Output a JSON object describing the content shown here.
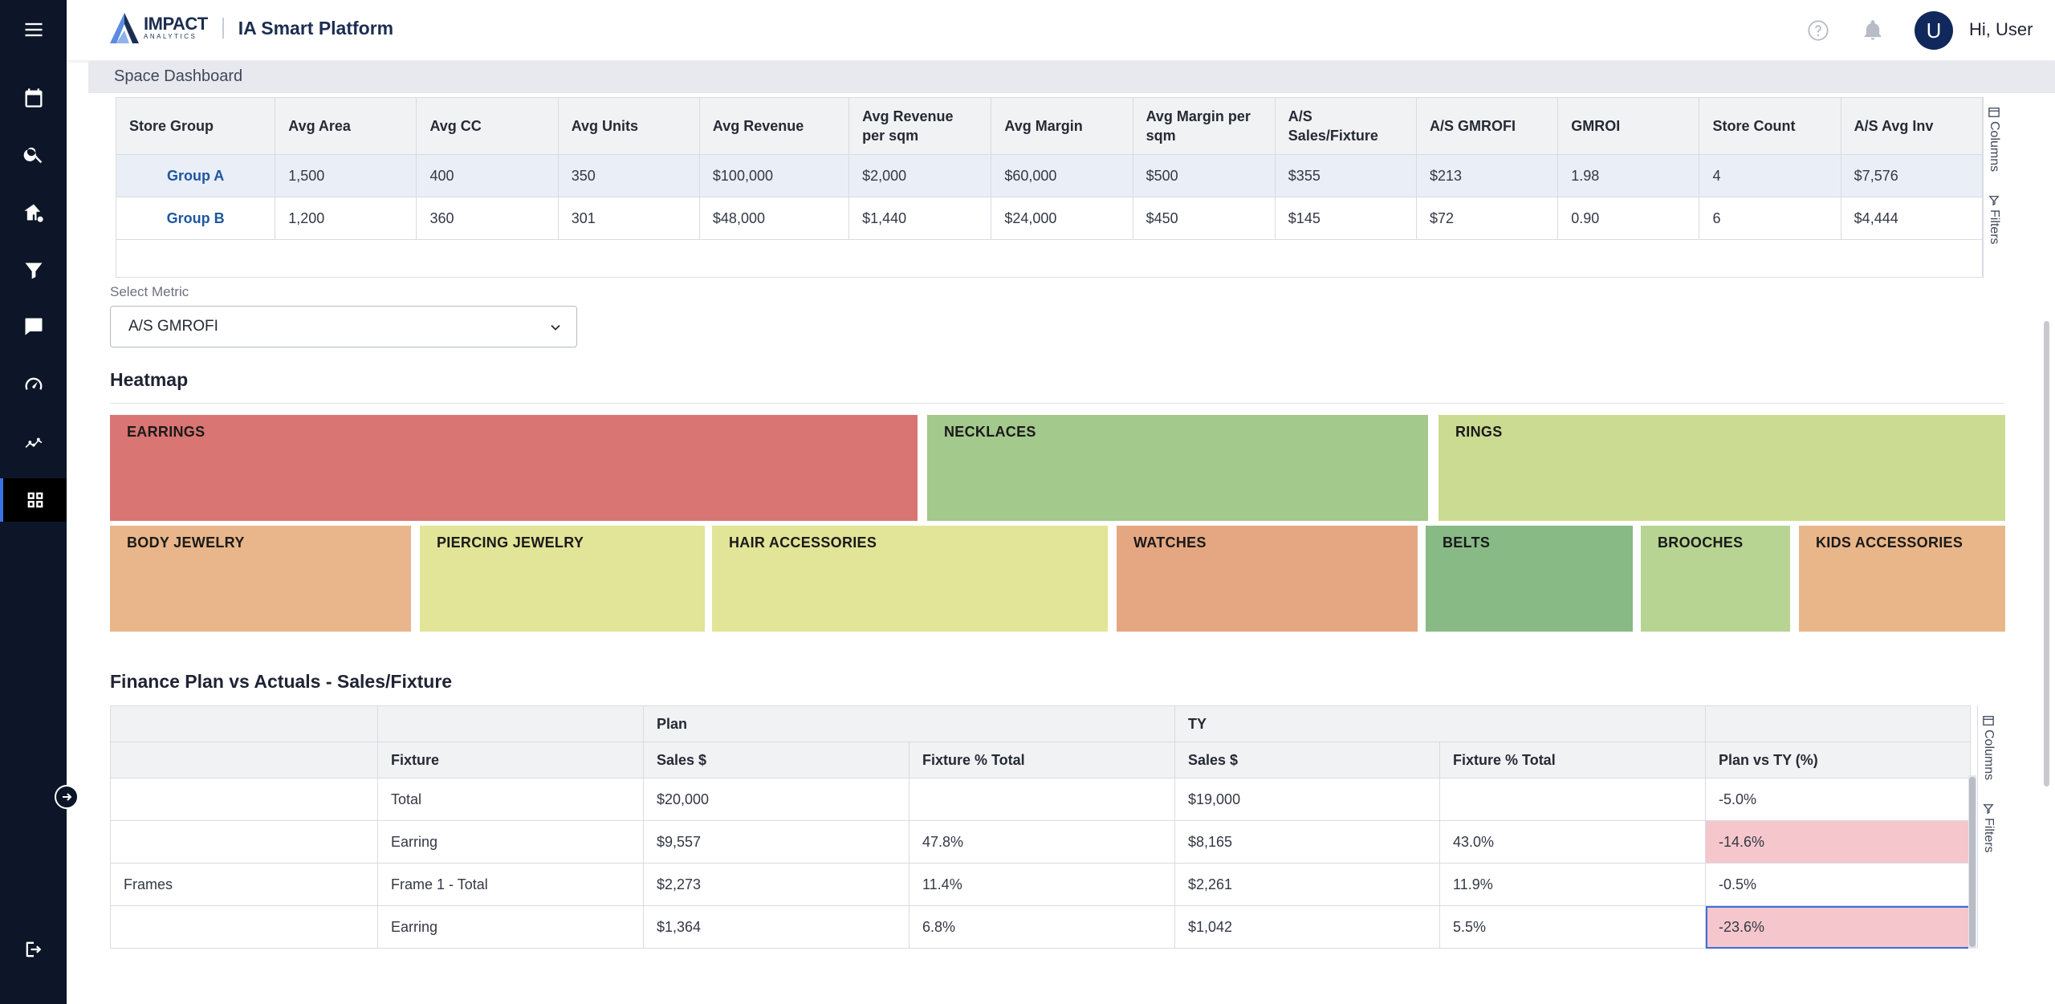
{
  "header": {
    "brand_main": "IMPACT",
    "brand_sub": "ANALYTICS",
    "app_title": "IA Smart Platform",
    "avatar_letter": "U",
    "greeting": "Hi, User"
  },
  "sidebar": {
    "items": [
      "menu-icon",
      "calendar-icon",
      "search-icon",
      "store-icon",
      "filter-icon",
      "chat-icon",
      "speedometer-icon",
      "trend-icon",
      "grid-icon",
      "logout-icon"
    ],
    "active": "grid-icon",
    "accent": "#3a73e6"
  },
  "breadcrumb": "Space Dashboard",
  "store_table": {
    "columns": [
      "Store Group",
      "Avg Area",
      "Avg CC",
      "Avg Units",
      "Avg Revenue",
      "Avg Revenue per sqm",
      "Avg Margin",
      "Avg Margin per sqm",
      "A/S Sales/Fixture",
      "A/S GMROFI",
      "GMROI",
      "Store Count",
      "A/S Avg Inv"
    ],
    "rows": [
      [
        "Group A",
        "1,500",
        "400",
        "350",
        "$100,000",
        "$2,000",
        "$60,000",
        "$500",
        "$355",
        "$213",
        "1.98",
        "4",
        "$7,576"
      ],
      [
        "Group B",
        "1,200",
        "360",
        "301",
        "$48,000",
        "$1,440",
        "$24,000",
        "$450",
        "$145",
        "$72",
        "0.90",
        "6",
        "$4,444"
      ]
    ],
    "side_tabs": [
      "Columns",
      "Filters"
    ]
  },
  "metric": {
    "label": "Select Metric",
    "value": "A/S GMROFI"
  },
  "heatmap": {
    "title": "Heatmap",
    "cells": [
      {
        "label": "EARRINGS",
        "color": "#d97572"
      },
      {
        "label": "NECKLACES",
        "color": "#a3c98c"
      },
      {
        "label": "RINGS",
        "color": "#cbdb92"
      },
      {
        "label": "BODY JEWELRY",
        "color": "#e8b68a"
      },
      {
        "label": "PIERCING JEWELRY",
        "color": "#e2e497"
      },
      {
        "label": "HAIR ACCESSORIES",
        "color": "#e2e497"
      },
      {
        "label": "WATCHES",
        "color": "#e4a782"
      },
      {
        "label": "BELTS",
        "color": "#88ba86"
      },
      {
        "label": "BROOCHES",
        "color": "#b7d492"
      },
      {
        "label": "KIDS ACCESSORIES",
        "color": "#e9b68a"
      }
    ]
  },
  "finance": {
    "title": "Finance Plan vs Actuals - Sales/Fixture",
    "group_headers": [
      "",
      "",
      "Plan",
      "",
      "TY",
      "",
      ""
    ],
    "columns": [
      "",
      "Fixture",
      "Sales $",
      "Fixture % Total",
      "Sales $",
      "Fixture % Total",
      "Plan vs TY (%)"
    ],
    "rows": [
      [
        "",
        "Total",
        "$20,000",
        "",
        "$19,000",
        "",
        "-5.0%"
      ],
      [
        "",
        "Earring",
        "$9,557",
        "47.8%",
        "$8,165",
        "43.0%",
        "-14.6%"
      ],
      [
        "Frames",
        "Frame 1 - Total",
        "$2,273",
        "11.4%",
        "$2,261",
        "11.9%",
        "-0.5%"
      ],
      [
        "",
        "Earring",
        "$1,364",
        "6.8%",
        "$1,042",
        "5.5%",
        "-23.6%"
      ]
    ],
    "negative_highlight": "#f5c7cc",
    "side_tabs": [
      "Columns",
      "Filters"
    ]
  }
}
